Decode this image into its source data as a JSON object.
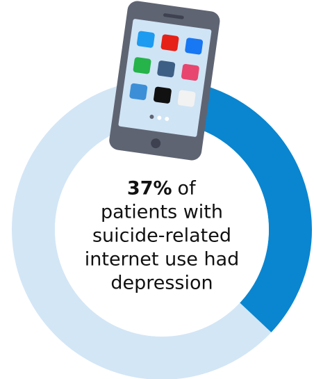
{
  "chart_data": {
    "type": "donut",
    "values": [
      37
    ],
    "value_labels": [
      "37%"
    ],
    "color": "#0a86d0",
    "track_color": "#d3e6f6",
    "caption_lines": [
      "of",
      "patients with",
      "suicide-related",
      "internet use had",
      "depression"
    ]
  }
}
